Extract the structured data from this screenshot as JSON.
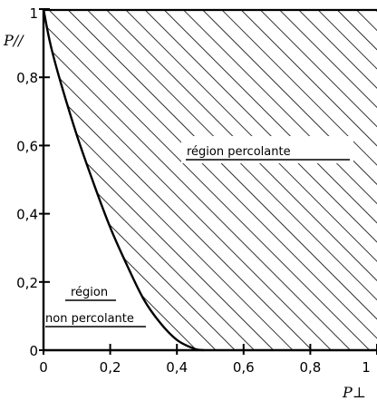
{
  "chart_data": {
    "type": "area",
    "xlabel": "P⊥",
    "ylabel": "P//",
    "xlim": [
      0,
      1
    ],
    "ylim": [
      0,
      1
    ],
    "xticks": [
      "0",
      "0,2",
      "0,4",
      "0,6",
      "0,8",
      "1"
    ],
    "yticks": [
      "0",
      "0,2",
      "0,4",
      "0,6",
      "0,8",
      "1"
    ],
    "grid": false,
    "boundary_curve": {
      "x": [
        0,
        0.02,
        0.05,
        0.1,
        0.15,
        0.2,
        0.25,
        0.3,
        0.35,
        0.4,
        0.45,
        0.48
      ],
      "y": [
        1.0,
        0.9,
        0.79,
        0.63,
        0.49,
        0.36,
        0.25,
        0.15,
        0.08,
        0.03,
        0.005,
        0
      ]
    },
    "regions": [
      {
        "label": "région percolante",
        "fill": "hatched"
      },
      {
        "label_lines": [
          "région",
          "non percolante"
        ],
        "fill": "none"
      }
    ]
  }
}
